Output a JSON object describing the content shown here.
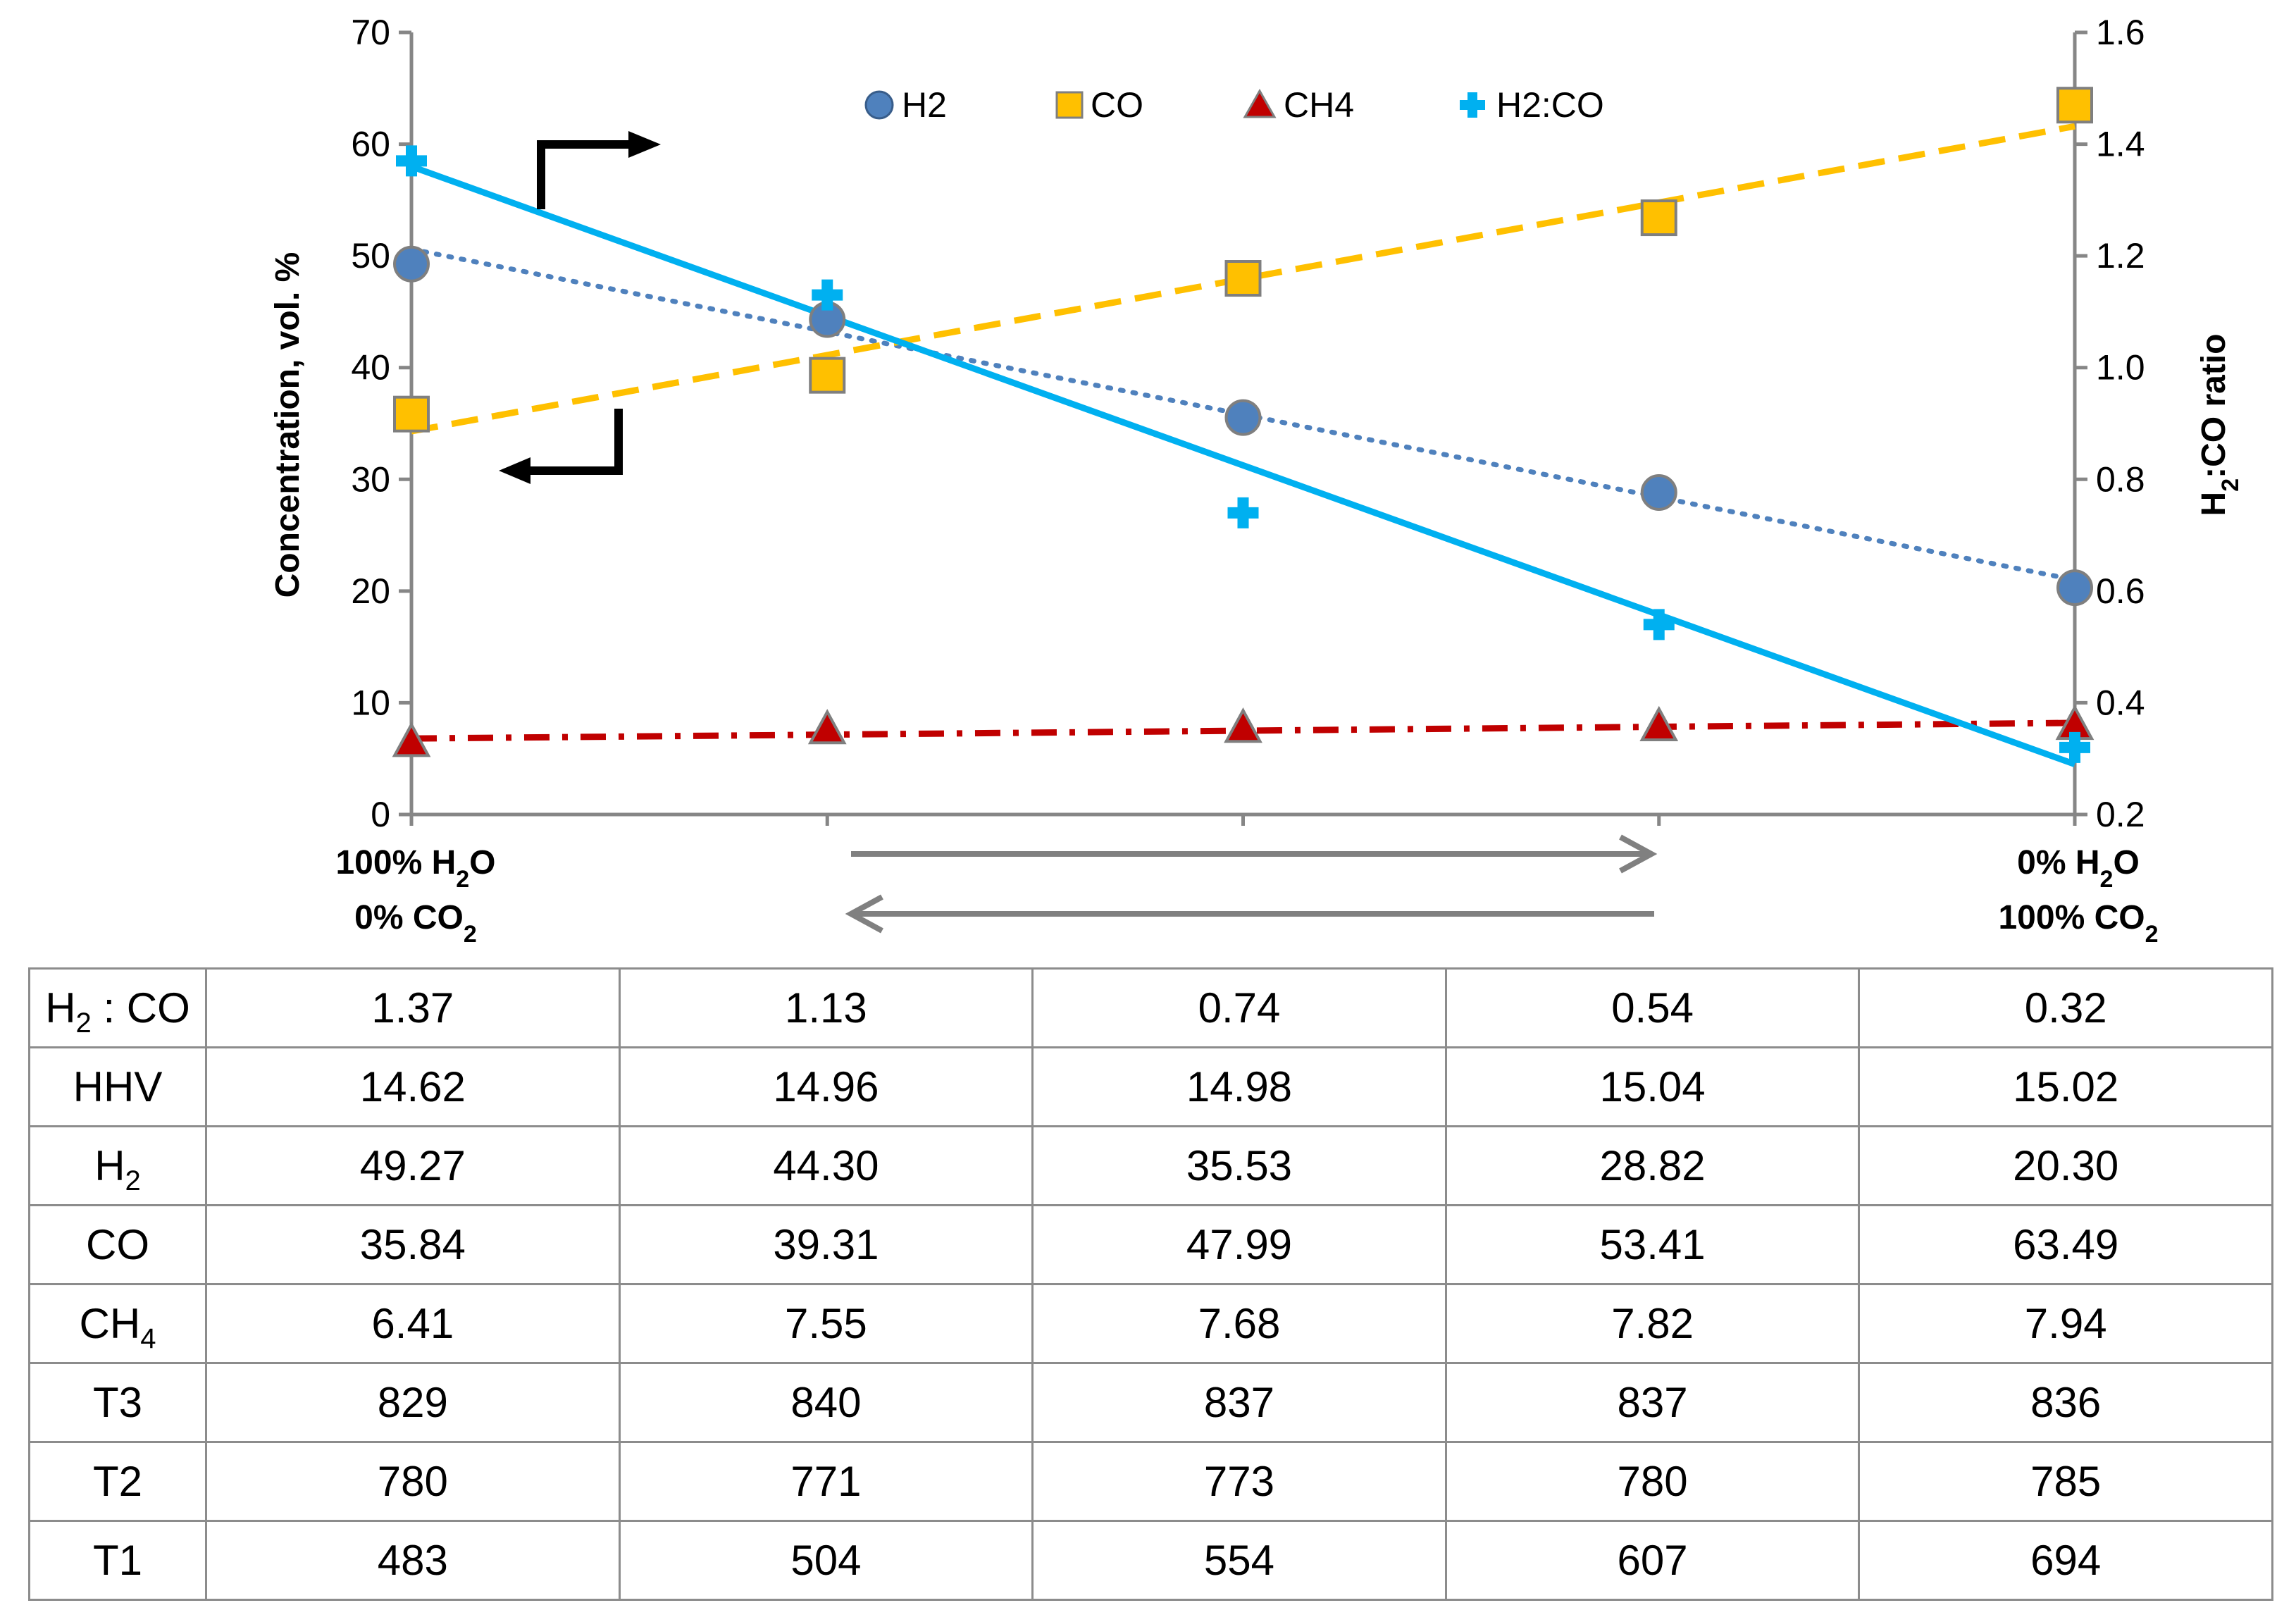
{
  "chart_data": {
    "type": "line",
    "title": "",
    "x_categories": [
      "100% H2O 0% CO2",
      "",
      "",
      "",
      "0% H2O 100% CO2"
    ],
    "x_end_labels": {
      "left_line1": "100% H",
      "left_line1_sub": "2",
      "left_line1_tail": "O",
      "left_line2": "0% CO",
      "left_line2_sub": "2",
      "right_line1": "0% H",
      "right_line1_sub": "2",
      "right_line1_tail": "O",
      "right_line2": "100% CO",
      "right_line2_sub": "2"
    },
    "ylabel_left": "Concentration, vol. %",
    "ylabel_right": {
      "prefix": "H",
      "sub": "2",
      "suffix": ":CO ratio"
    },
    "ylim_left": [
      0,
      70
    ],
    "yticks_left": [
      "0",
      "10",
      "20",
      "30",
      "40",
      "50",
      "60",
      "70"
    ],
    "ylim_right": [
      0.2,
      1.6
    ],
    "yticks_right": [
      "0.2",
      "0.4",
      "0.6",
      "0.8",
      "1.0",
      "1.2",
      "1.4",
      "1.6"
    ],
    "grid": false,
    "legend_position": "top",
    "series": [
      {
        "name": "H2",
        "axis": "left",
        "marker": "circle",
        "color": "#4f81bd",
        "values": [
          49.27,
          44.3,
          35.53,
          28.82,
          20.3
        ],
        "trend": {
          "style": "dotted",
          "from": 50.6,
          "to": 21.0
        }
      },
      {
        "name": "CO",
        "axis": "left",
        "marker": "square",
        "color": "#ffc000",
        "values": [
          35.84,
          39.31,
          47.99,
          53.41,
          63.49
        ],
        "trend": {
          "style": "dashed",
          "from": 34.3,
          "to": 61.6
        }
      },
      {
        "name": "CH4",
        "axis": "left",
        "marker": "triangle",
        "color": "#c00000",
        "values": [
          6.41,
          7.55,
          7.68,
          7.82,
          7.94
        ],
        "trend": {
          "style": "dashdot",
          "from": 6.8,
          "to": 8.2
        }
      },
      {
        "name": "H2:CO",
        "axis": "right",
        "marker": "plus",
        "color": "#00b0f0",
        "values": [
          1.37,
          1.13,
          0.74,
          0.54,
          0.32
        ],
        "trend": {
          "style": "solid",
          "from": 1.36,
          "to": 0.29
        }
      }
    ]
  },
  "table": {
    "rows": [
      {
        "label": "H",
        "label_sub": "2",
        "label_tail": " : CO",
        "values": [
          "1.37",
          "1.13",
          "0.74",
          "0.54",
          "0.32"
        ]
      },
      {
        "label": "HHV",
        "label_sub": "",
        "label_tail": "",
        "values": [
          "14.62",
          "14.96",
          "14.98",
          "15.04",
          "15.02"
        ]
      },
      {
        "label": "H",
        "label_sub": "2",
        "label_tail": "",
        "values": [
          "49.27",
          "44.30",
          "35.53",
          "28.82",
          "20.30"
        ]
      },
      {
        "label": "CO",
        "label_sub": "",
        "label_tail": "",
        "values": [
          "35.84",
          "39.31",
          "47.99",
          "53.41",
          "63.49"
        ]
      },
      {
        "label": "CH",
        "label_sub": "4",
        "label_tail": "",
        "values": [
          "6.41",
          "7.55",
          "7.68",
          "7.82",
          "7.94"
        ]
      },
      {
        "label": "T3",
        "label_sub": "",
        "label_tail": "",
        "values": [
          "829",
          "840",
          "837",
          "837",
          "836"
        ]
      },
      {
        "label": "T2",
        "label_sub": "",
        "label_tail": "",
        "values": [
          "780",
          "771",
          "773",
          "780",
          "785"
        ]
      },
      {
        "label": "T1",
        "label_sub": "",
        "label_tail": "",
        "values": [
          "483",
          "504",
          "554",
          "607",
          "694"
        ]
      }
    ]
  }
}
